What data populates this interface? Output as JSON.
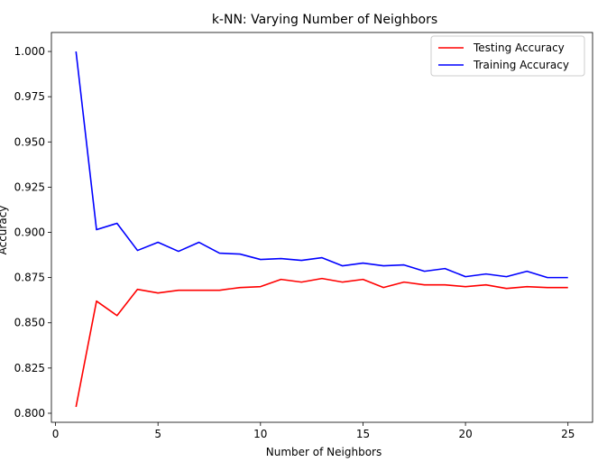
{
  "chart_data": {
    "type": "line",
    "title": "k-NN: Varying Number of Neighbors",
    "xlabel": "Number of Neighbors",
    "ylabel": "Accuracy",
    "xlim": [
      -0.2,
      26.2
    ],
    "ylim": [
      0.795,
      1.0105
    ],
    "xticks": [
      0,
      5,
      10,
      15,
      20,
      25
    ],
    "yticks": [
      0.8,
      0.825,
      0.85,
      0.875,
      0.9,
      0.925,
      0.95,
      0.975,
      1.0
    ],
    "ytick_labels": [
      "0.800",
      "0.825",
      "0.850",
      "0.875",
      "0.900",
      "0.925",
      "0.950",
      "0.975",
      "1.000"
    ],
    "grid": false,
    "legend_position": "top-right",
    "x": [
      1,
      2,
      3,
      4,
      5,
      6,
      7,
      8,
      9,
      10,
      11,
      12,
      13,
      14,
      15,
      16,
      17,
      18,
      19,
      20,
      21,
      22,
      23,
      24,
      25
    ],
    "series": [
      {
        "name": "Testing Accuracy",
        "color": "#ff0000",
        "values": [
          0.8035,
          0.862,
          0.854,
          0.8685,
          0.8665,
          0.868,
          0.868,
          0.868,
          0.8695,
          0.87,
          0.874,
          0.8725,
          0.8745,
          0.8725,
          0.874,
          0.8695,
          0.8725,
          0.871,
          0.871,
          0.87,
          0.871,
          0.869,
          0.87,
          0.8695,
          0.8695
        ]
      },
      {
        "name": "Training Accuracy",
        "color": "#0000ff",
        "values": [
          1.0,
          0.9015,
          0.905,
          0.89,
          0.8945,
          0.8895,
          0.8945,
          0.8885,
          0.888,
          0.885,
          0.8855,
          0.8845,
          0.886,
          0.8815,
          0.883,
          0.8815,
          0.882,
          0.8785,
          0.88,
          0.8755,
          0.877,
          0.8755,
          0.8785,
          0.875,
          0.875
        ]
      }
    ]
  }
}
